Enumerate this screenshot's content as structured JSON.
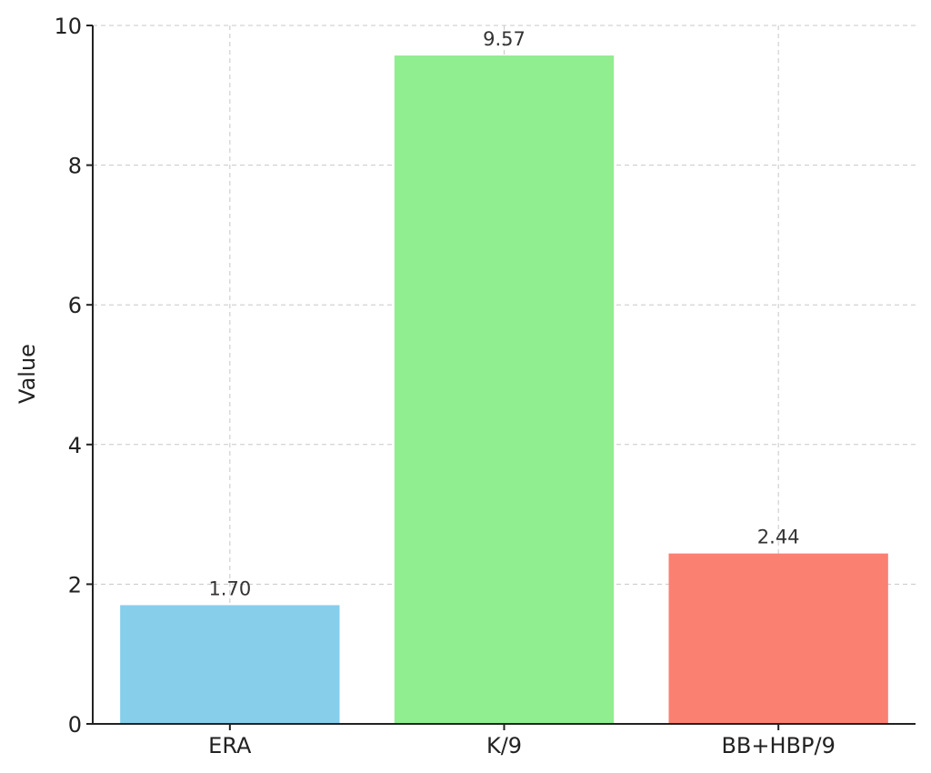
{
  "chart_data": {
    "type": "bar",
    "title": "",
    "xlabel": "",
    "ylabel": "Value",
    "categories": [
      "ERA",
      "K/9",
      "BB+HBP/9"
    ],
    "values": [
      1.7,
      9.57,
      2.44
    ],
    "value_labels": [
      "1.70",
      "9.57",
      "2.44"
    ],
    "bar_colors": [
      "#87ceeb",
      "#90ee90",
      "#fa8072"
    ],
    "ylim": [
      0,
      10
    ],
    "yticks": [
      0,
      2,
      4,
      6,
      8,
      10
    ],
    "ytick_labels": [
      "0",
      "2",
      "4",
      "6",
      "8",
      "10"
    ],
    "grid": true,
    "legend": "none"
  }
}
